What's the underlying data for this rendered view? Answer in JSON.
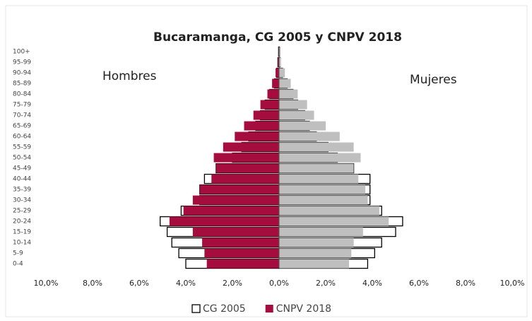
{
  "chart_data": {
    "type": "pyramid",
    "title": "Bucaramanga, CG 2005 y CNPV 2018",
    "annotations": [
      "Hombres",
      "Mujeres"
    ],
    "categories": [
      "0-4",
      "5-9",
      "10-14",
      "15-19",
      "20-24",
      "25-29",
      "30-34",
      "35-39",
      "40-44",
      "45-49",
      "50-54",
      "55-59",
      "60-64",
      "65-69",
      "70-74",
      "75-79",
      "80-84",
      "85-89",
      "90-94",
      "95-99",
      "100+"
    ],
    "series": [
      {
        "name": "CG 2005",
        "color_men": "#ffffff",
        "color_women": "#ffffff",
        "stroke": "#000000",
        "men": [
          -4.0,
          -4.3,
          -4.6,
          -4.8,
          -5.1,
          -4.2,
          -3.4,
          -3.4,
          -3.2,
          -2.7,
          -2.0,
          -1.6,
          -1.3,
          -1.0,
          -0.8,
          -0.6,
          -0.4,
          -0.2,
          -0.1,
          -0.05,
          -0.02
        ],
        "women": [
          3.8,
          4.1,
          4.4,
          5.0,
          5.3,
          4.4,
          3.9,
          3.9,
          3.9,
          3.2,
          2.5,
          2.1,
          1.6,
          1.3,
          1.1,
          0.8,
          0.6,
          0.35,
          0.15,
          0.05,
          0.02
        ]
      },
      {
        "name": "CNPV 2018",
        "color_men": "#a50d3f",
        "color_women": "#bfbfbf",
        "men": [
          -3.1,
          -3.2,
          -3.3,
          -3.7,
          -4.7,
          -4.1,
          -3.7,
          -3.4,
          -2.9,
          -2.7,
          -2.8,
          -2.4,
          -1.9,
          -1.5,
          -1.1,
          -0.8,
          -0.5,
          -0.3,
          -0.15,
          -0.05,
          -0.02
        ],
        "women": [
          3.0,
          3.1,
          3.2,
          3.6,
          4.7,
          4.3,
          3.8,
          3.7,
          3.4,
          3.2,
          3.5,
          3.2,
          2.6,
          2.0,
          1.5,
          1.2,
          0.8,
          0.5,
          0.25,
          0.08,
          0.03
        ]
      }
    ],
    "xlim": [
      -10,
      10
    ],
    "xticks": [
      {
        "value": -10,
        "label": "10,0%"
      },
      {
        "value": -8,
        "label": "8,0%"
      },
      {
        "value": -6,
        "label": "6,0%"
      },
      {
        "value": -4,
        "label": "4,0%"
      },
      {
        "value": -2,
        "label": "2,0%"
      },
      {
        "value": 0,
        "label": "0,0%"
      },
      {
        "value": 2,
        "label": "2,0%"
      },
      {
        "value": 4,
        "label": "4,0%"
      },
      {
        "value": 6,
        "label": "6,0%"
      },
      {
        "value": 8,
        "label": "8,0%"
      },
      {
        "value": 10,
        "label": "10,0%"
      }
    ]
  }
}
